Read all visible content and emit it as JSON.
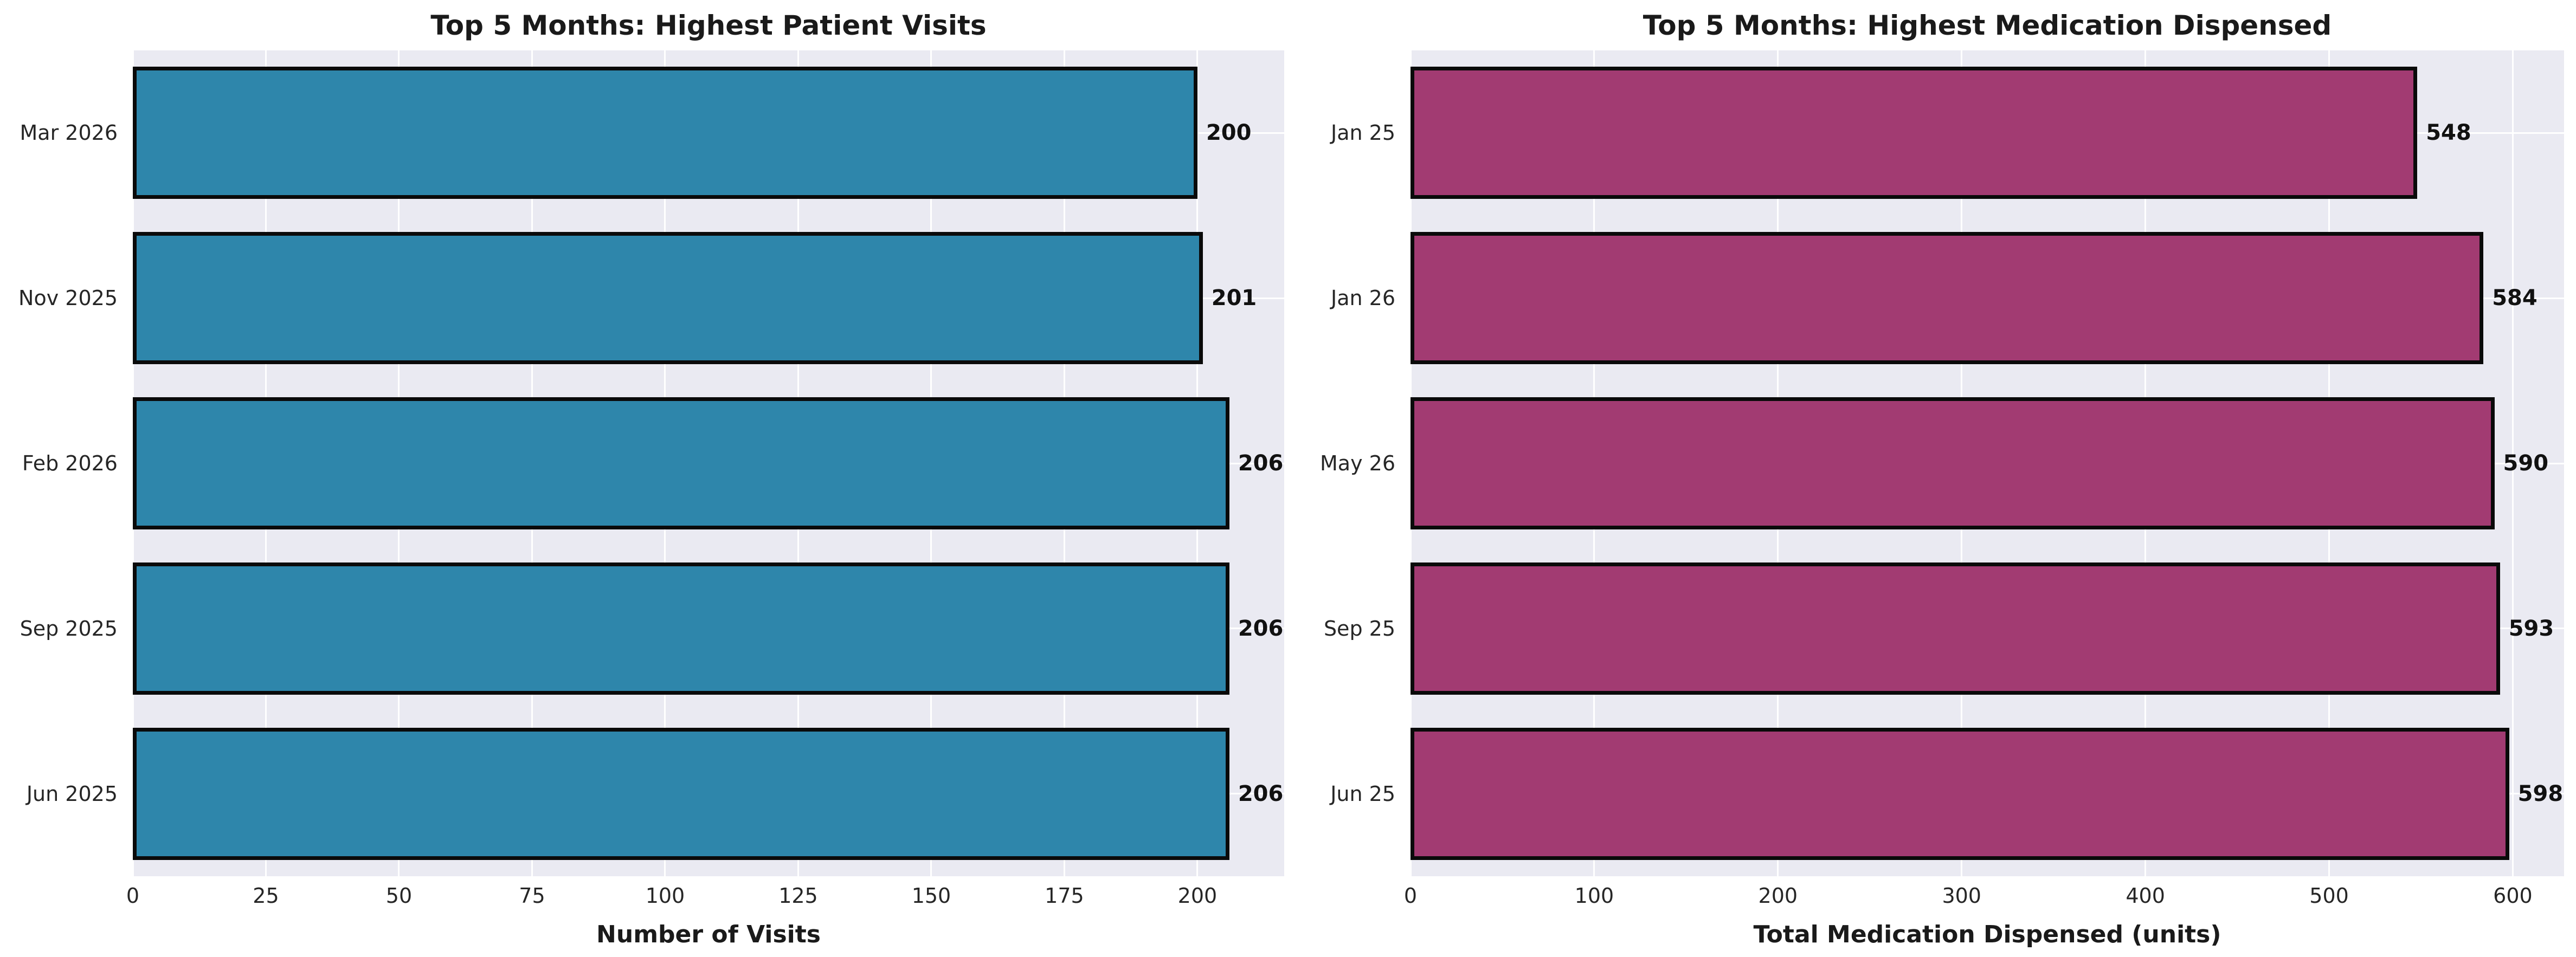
{
  "figure": {
    "background": "#ffffff",
    "plot_background": "#eaeaf2",
    "grid_color": "#ffffff",
    "bar_edge_color": "#0a0a0a"
  },
  "chart_data": [
    {
      "type": "bar",
      "orientation": "horizontal",
      "title": "Top 5 Months: Highest Patient Visits",
      "xlabel": "Number of Visits",
      "ylabel": "",
      "categories": [
        "Mar 2026",
        "Nov 2025",
        "Feb 2026",
        "Sep 2025",
        "Jun 2025"
      ],
      "values": [
        200,
        201,
        206,
        206,
        206
      ],
      "value_labels": [
        "200",
        "201",
        "206",
        "206",
        "206"
      ],
      "bar_color": "#2e86ab",
      "xlim": [
        0,
        216.3
      ],
      "xticks": [
        0,
        25,
        50,
        75,
        100,
        125,
        150,
        175,
        200
      ],
      "grid": true,
      "legend": "none"
    },
    {
      "type": "bar",
      "orientation": "horizontal",
      "title": "Top 5 Months: Highest Medication Dispensed",
      "xlabel": "Total Medication Dispensed (units)",
      "ylabel": "",
      "categories": [
        "Jan 25",
        "Jan 26",
        "May 26",
        "Sep 25",
        "Jun 25"
      ],
      "values": [
        548,
        584,
        590,
        593,
        598
      ],
      "value_labels": [
        "548",
        "584",
        "590",
        "593",
        "598"
      ],
      "bar_color": "#a23b72",
      "xlim": [
        0,
        627.9
      ],
      "xticks": [
        0,
        100,
        200,
        300,
        400,
        500,
        600
      ],
      "grid": true,
      "legend": "none"
    }
  ]
}
